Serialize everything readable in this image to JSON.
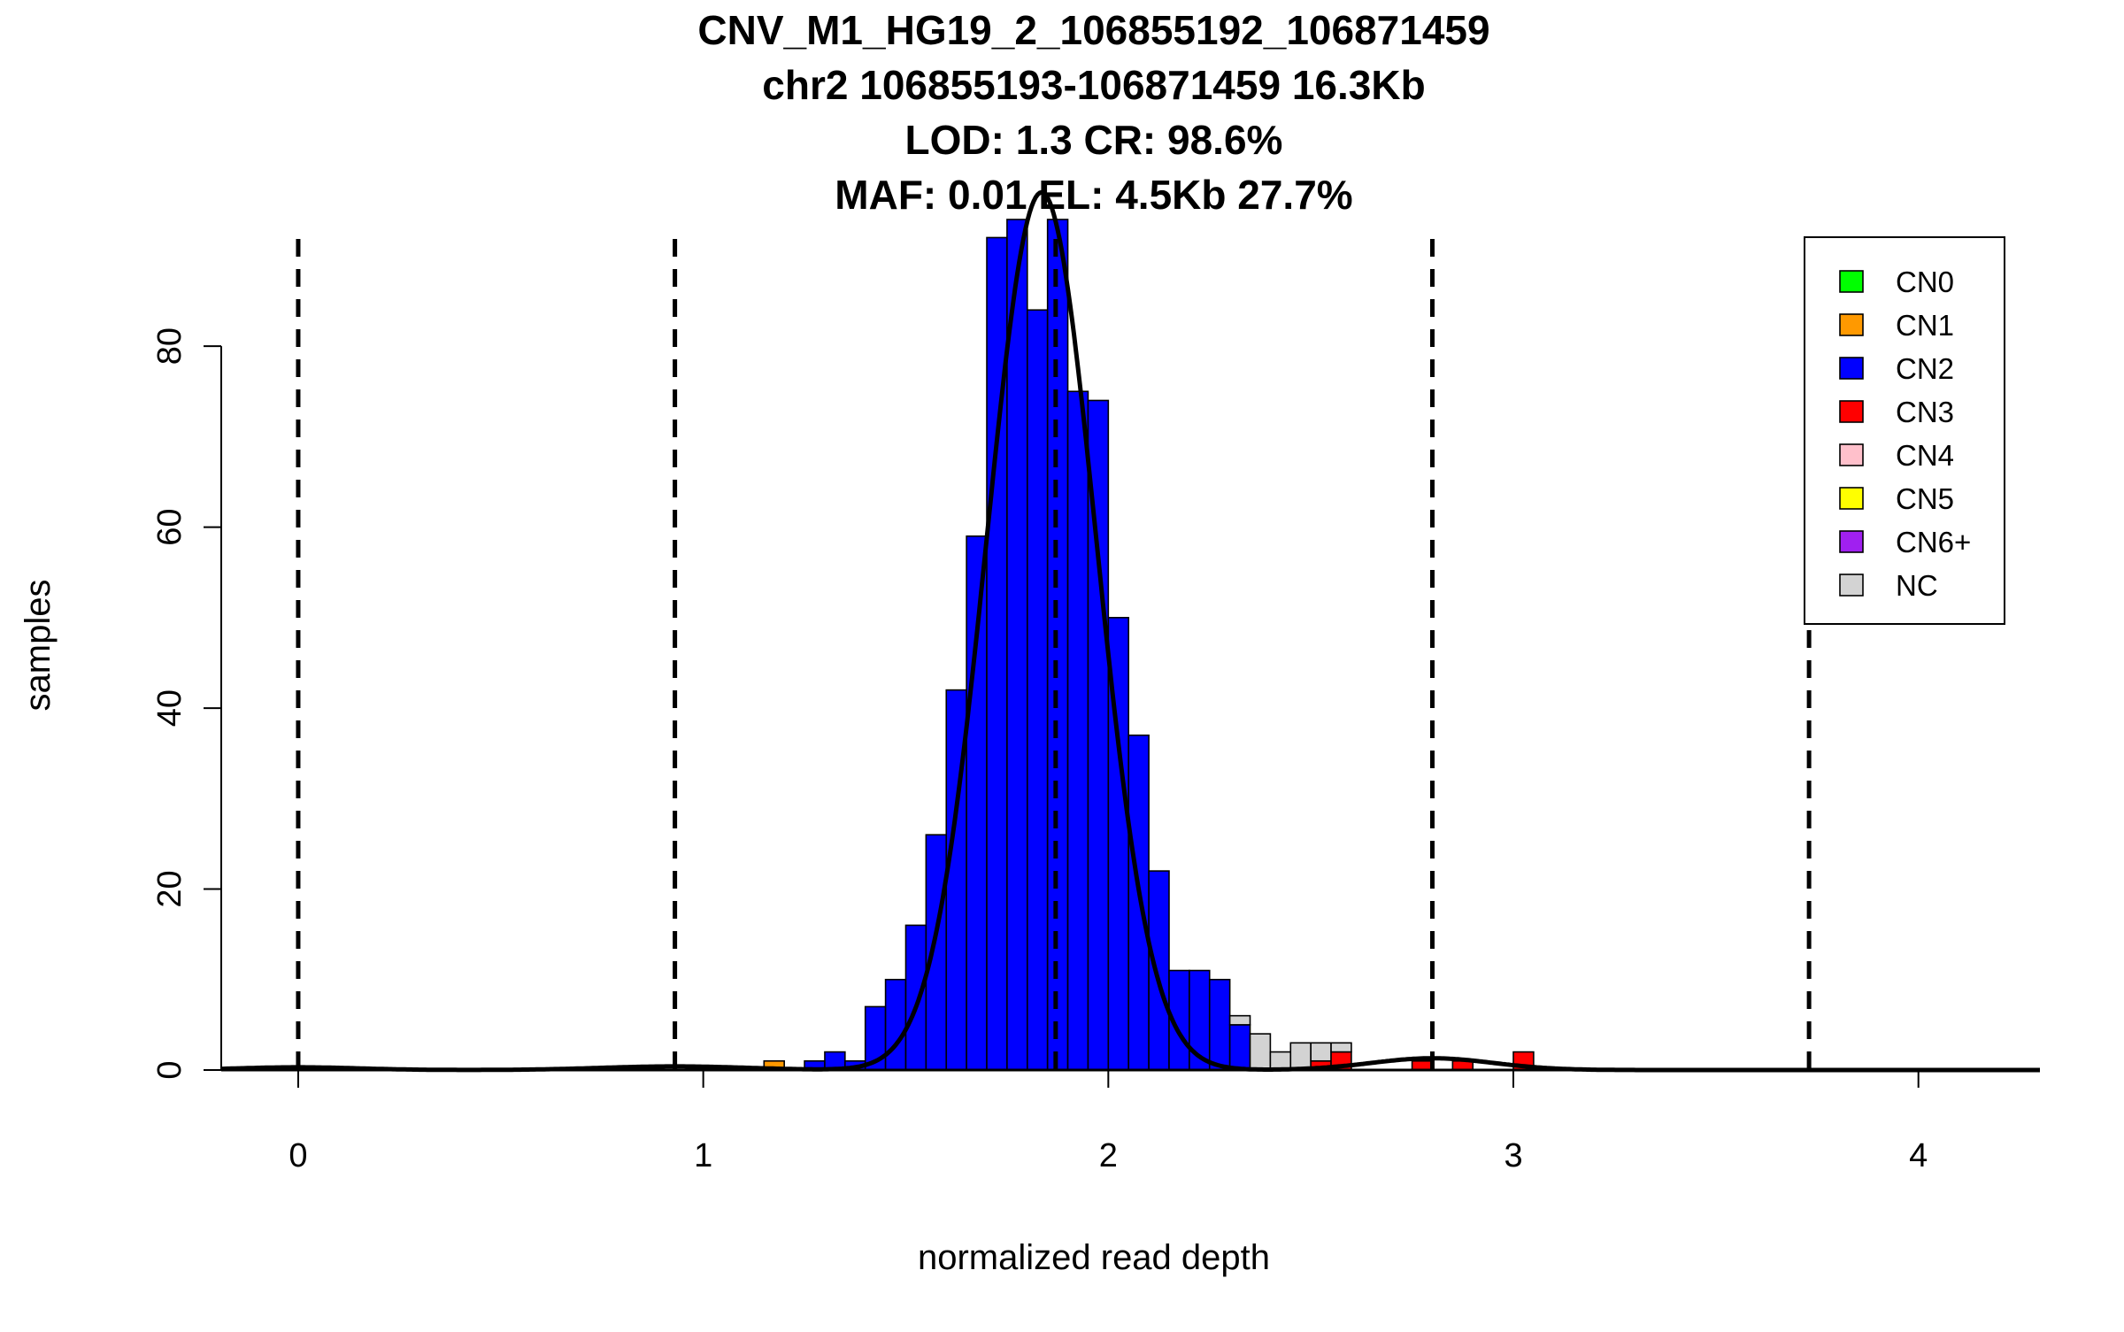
{
  "titles": [
    "CNV_M1_HG19_2_106855192_106871459",
    "chr2 106855193-106871459 16.3Kb",
    "LOD: 1.3 CR: 98.6%",
    "MAF: 0.01 EL: 4.5Kb 27.7%"
  ],
  "colors": {
    "CN0": "#00ff00",
    "CN1": "#ff9900",
    "CN2": "#0000ff",
    "CN3": "#ff0000",
    "CN4": "#ffc0cb",
    "CN5": "#ffff00",
    "CN6+": "#a020f0",
    "NC": "#d3d3d3"
  },
  "chart_data": {
    "type": "bar",
    "subtype": "stacked histogram with fitted mixture density curve",
    "xlabel": "normalized read depth",
    "ylabel": "samples",
    "xlim": [
      -0.19,
      4.3
    ],
    "ylim": [
      0,
      94
    ],
    "x_ticks": [
      0,
      1,
      2,
      3,
      4
    ],
    "y_ticks": [
      0,
      20,
      40,
      60,
      80
    ],
    "bin_width": 0.05,
    "legend": {
      "placement": "top-right",
      "entries": [
        "CN0",
        "CN1",
        "CN2",
        "CN3",
        "CN4",
        "CN5",
        "CN6+",
        "NC"
      ]
    },
    "dashed_lines_x": [
      0,
      0.93,
      1.87,
      2.8,
      3.73
    ],
    "bins": [
      {
        "x0": 1.15,
        "CN1": 1
      },
      {
        "x0": 1.25,
        "CN2": 1
      },
      {
        "x0": 1.3,
        "CN2": 2
      },
      {
        "x0": 1.35,
        "CN2": 1
      },
      {
        "x0": 1.4,
        "CN2": 7
      },
      {
        "x0": 1.45,
        "CN2": 10
      },
      {
        "x0": 1.5,
        "CN2": 16
      },
      {
        "x0": 1.55,
        "CN2": 26
      },
      {
        "x0": 1.6,
        "CN2": 42
      },
      {
        "x0": 1.65,
        "CN2": 59
      },
      {
        "x0": 1.7,
        "CN2": 92
      },
      {
        "x0": 1.75,
        "CN2": 94
      },
      {
        "x0": 1.8,
        "CN2": 84
      },
      {
        "x0": 1.85,
        "CN2": 94
      },
      {
        "x0": 1.9,
        "CN2": 75
      },
      {
        "x0": 1.95,
        "CN2": 74
      },
      {
        "x0": 2.0,
        "CN2": 50
      },
      {
        "x0": 2.05,
        "CN2": 37
      },
      {
        "x0": 2.1,
        "CN2": 22
      },
      {
        "x0": 2.15,
        "CN2": 11
      },
      {
        "x0": 2.2,
        "CN2": 11
      },
      {
        "x0": 2.25,
        "CN2": 10
      },
      {
        "x0": 2.3,
        "CN2": 5,
        "NC": 1
      },
      {
        "x0": 2.35,
        "NC": 4
      },
      {
        "x0": 2.4,
        "NC": 2
      },
      {
        "x0": 2.45,
        "NC": 3
      },
      {
        "x0": 2.5,
        "CN3": 1,
        "NC": 2
      },
      {
        "x0": 2.55,
        "CN3": 2,
        "NC": 1
      },
      {
        "x0": 2.75,
        "CN3": 1
      },
      {
        "x0": 2.85,
        "CN3": 1
      },
      {
        "x0": 3.0,
        "CN3": 2
      }
    ],
    "density_components": [
      {
        "mean": 0.0,
        "sd": 0.15,
        "peak": 0.3
      },
      {
        "mean": 0.93,
        "sd": 0.18,
        "peak": 0.4
      },
      {
        "mean": 1.835,
        "sd": 0.135,
        "peak": 97
      },
      {
        "mean": 2.8,
        "sd": 0.15,
        "peak": 1.3
      }
    ]
  }
}
